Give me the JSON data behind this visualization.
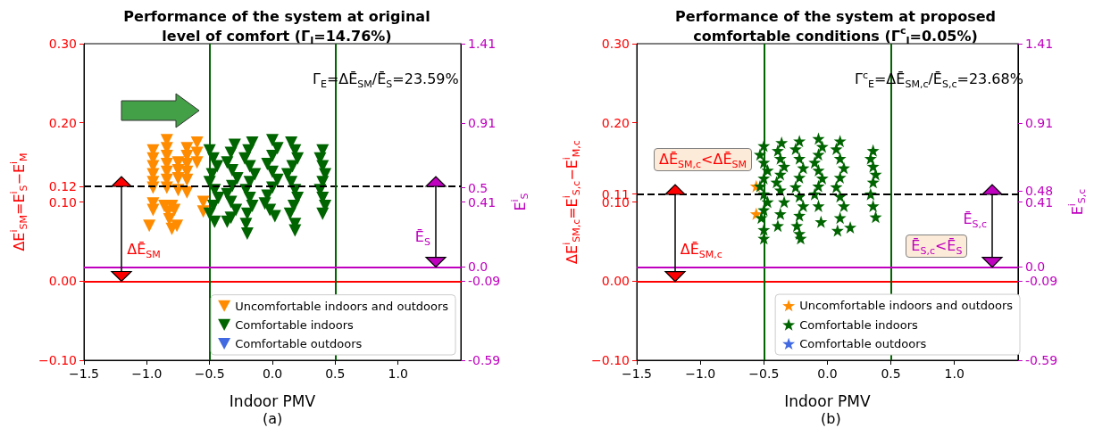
{
  "chart_data": [
    {
      "type": "scatter",
      "title": "Performance of the system at original\nlevel of comfort (Γ$_{I}$=14.76%)",
      "xlabel": "Indoor PMV",
      "ylabel": "ΔE$^{i}$$_{SM}$=E$^{i}$$_{S}$−E$^{i}$$_{M}$",
      "y2label": "E$^{i}$$_{S}$",
      "xlim": [
        -1.5,
        1.5
      ],
      "xticks": [
        {
          "value": -1.5,
          "label": "−1.5"
        },
        {
          "value": -1.0,
          "label": "−1.0"
        },
        {
          "value": -0.5,
          "label": "−0.5"
        },
        {
          "value": 0,
          "label": "0.0"
        },
        0.5,
        {
          "value": 1.0,
          "label": "1.0"
        }
      ],
      "ylim": [
        -0.1,
        0.3
      ],
      "yticks": [
        {
          "value": -0.1,
          "label": "−0.10"
        },
        {
          "value": 0,
          "label": "0.00"
        },
        {
          "value": 0.1,
          "label": "0.10"
        },
        0.12,
        {
          "value": 0.2,
          "label": "0.20"
        },
        {
          "value": 0.3,
          "label": "0.30"
        }
      ],
      "y2lim": [
        -0.59,
        1.41
      ],
      "y2ticks": [
        -0.59,
        -0.09,
        {
          "value": 0,
          "label": "0.0"
        },
        0.41,
        0.5,
        0.91,
        1.41
      ],
      "marker": "triangle",
      "legend": "bottom right",
      "series": [
        {
          "name": "Uncomfortable indoors and outdoors",
          "color": "#ff8c00",
          "x": [
            -0.95,
            -0.95,
            -0.95,
            -0.95,
            -0.95,
            -0.95,
            -0.95,
            -0.95,
            -0.98,
            -0.84,
            -0.84,
            -0.84,
            -0.84,
            -0.84,
            -0.84,
            -0.84,
            -0.86,
            -0.83,
            -0.8,
            -0.82,
            -0.78,
            -0.8,
            -0.76,
            -0.75,
            -0.75,
            -0.75,
            -0.75,
            -0.68,
            -0.68,
            -0.68,
            -0.68,
            -0.68,
            -0.68,
            -0.6,
            -0.6,
            -0.6,
            -0.55,
            -0.55
          ],
          "values": [
            0.165,
            0.155,
            0.145,
            0.135,
            0.125,
            0.118,
            0.098,
            0.09,
            0.07,
            0.178,
            0.168,
            0.158,
            0.148,
            0.138,
            0.128,
            0.118,
            0.095,
            0.088,
            0.095,
            0.078,
            0.09,
            0.066,
            0.07,
            0.15,
            0.14,
            0.13,
            0.115,
            0.168,
            0.158,
            0.148,
            0.138,
            0.128,
            0.112,
            0.175,
            0.162,
            0.15,
            0.1,
            0.088
          ]
        },
        {
          "name": "Comfortable indoors",
          "color": "#006400",
          "x": [
            -0.5,
            -0.47,
            -0.44,
            -0.48,
            -0.5,
            -0.46,
            -0.43,
            -0.47,
            -0.5,
            -0.46,
            -0.3,
            -0.33,
            -0.36,
            -0.32,
            -0.28,
            -0.32,
            -0.36,
            -0.33,
            -0.29,
            -0.33,
            -0.36,
            -0.16,
            -0.19,
            -0.22,
            -0.18,
            -0.14,
            -0.18,
            -0.21,
            -0.18,
            -0.16,
            -0.2,
            -0.21,
            -0.2,
            0.0,
            0.04,
            0.0,
            -0.04,
            0.0,
            0.04,
            0.0,
            -0.04,
            -0.06,
            -0.02,
            0.02,
            0.15,
            0.18,
            0.2,
            0.16,
            0.12,
            0.15,
            0.18,
            0.2,
            0.17,
            0.14,
            0.18,
            0.18,
            0.4,
            0.38,
            0.4,
            0.42,
            0.4,
            0.38,
            0.4,
            0.42,
            0.4
          ],
          "values": [
            0.165,
            0.155,
            0.145,
            0.135,
            0.125,
            0.115,
            0.105,
            0.095,
            0.085,
            0.075,
            0.172,
            0.162,
            0.15,
            0.14,
            0.13,
            0.12,
            0.11,
            0.1,
            0.09,
            0.08,
            0.075,
            0.175,
            0.165,
            0.155,
            0.145,
            0.135,
            0.125,
            0.115,
            0.105,
            0.095,
            0.085,
            0.072,
            0.06,
            0.178,
            0.168,
            0.158,
            0.148,
            0.138,
            0.128,
            0.118,
            0.108,
            0.098,
            0.09,
            0.082,
            0.175,
            0.165,
            0.155,
            0.145,
            0.135,
            0.125,
            0.115,
            0.105,
            0.095,
            0.085,
            0.072,
            0.064,
            0.165,
            0.155,
            0.145,
            0.135,
            0.125,
            0.115,
            0.105,
            0.095,
            0.085
          ]
        },
        {
          "name": "Comfortable outdoors",
          "color": "#4169e1"
        }
      ],
      "ref_lines": [
        {
          "axis": "y",
          "value": 0,
          "color": "#ff0000",
          "line_style": "solid"
        },
        {
          "axis": "y2",
          "value": 0,
          "color": "#bf00bf",
          "line_style": "solid"
        },
        {
          "axis": "y",
          "value": 0.12,
          "color": "#000000",
          "line_style": "dashed"
        },
        {
          "axis": "x",
          "value": -0.5,
          "color": "#006400",
          "line_style": "solid"
        },
        {
          "axis": "x",
          "value": 0.5,
          "color": "#006400",
          "line_style": "solid"
        }
      ],
      "annotations": [
        "Γ$_{E}$=ΔĒ$_{SM}$/Ē$_{S}$=23.59%",
        "ΔĒ$_{SM}$",
        "Ē$_{S}$",
        "(a)"
      ]
    },
    {
      "type": "scatter",
      "title": "Performance of the system at proposed\ncomfortable conditions (Γ$^{c}$$_{I}$=0.05%)",
      "xlabel": "Indoor PMV",
      "ylabel": "ΔE$^{i}$$_{SM,c}$=E$^{i}$$_{S,c}$−E$^{i}$$_{M,c}$",
      "y2label": "E$^{i}$$_{S,c}$",
      "xlim": [
        -1.5,
        1.5
      ],
      "xticks": [
        {
          "value": -1.5,
          "label": "−1.5"
        },
        {
          "value": -1.0,
          "label": "−1.0"
        },
        {
          "value": -0.5,
          "label": "−0.5"
        },
        {
          "value": 0,
          "label": "0.0"
        },
        0.5,
        {
          "value": 1.0,
          "label": "1.0"
        }
      ],
      "ylim": [
        -0.1,
        0.3
      ],
      "yticks": [
        {
          "value": -0.1,
          "label": "−0.10"
        },
        {
          "value": 0,
          "label": "0.00"
        },
        {
          "value": 0.1,
          "label": "0.10"
        },
        0.11,
        {
          "value": 0.2,
          "label": "0.20"
        },
        {
          "value": 0.3,
          "label": "0.30"
        }
      ],
      "y2lim": [
        -0.59,
        1.41
      ],
      "y2ticks": [
        -0.59,
        -0.09,
        {
          "value": 0,
          "label": "0.0"
        },
        0.41,
        0.48,
        0.91,
        1.41
      ],
      "marker": "star",
      "legend": "bottom right",
      "series": [
        {
          "name": "Uncomfortable indoors and outdoors",
          "color": "#ff8c00",
          "x": [
            -0.56,
            -0.56
          ],
          "values": [
            0.12,
            0.085
          ]
        },
        {
          "name": "Comfortable indoors",
          "color": "#006400",
          "x": [
            -0.5,
            -0.53,
            -0.5,
            -0.47,
            -0.5,
            -0.53,
            -0.5,
            -0.47,
            -0.5,
            -0.52,
            -0.5,
            -0.5,
            -0.36,
            -0.39,
            -0.37,
            -0.34,
            -0.37,
            -0.4,
            -0.37,
            -0.34,
            -0.37,
            -0.39,
            -0.22,
            -0.25,
            -0.22,
            -0.19,
            -0.22,
            -0.25,
            -0.22,
            -0.19,
            -0.22,
            -0.24,
            -0.22,
            -0.21,
            -0.07,
            -0.04,
            -0.07,
            -0.1,
            -0.07,
            -0.04,
            -0.07,
            -0.1,
            -0.07,
            -0.05,
            0.1,
            0.07,
            0.1,
            0.13,
            0.1,
            0.07,
            0.1,
            0.13,
            0.1,
            0.08,
            0.18,
            0.36,
            0.34,
            0.36,
            0.38,
            0.36,
            0.34,
            0.36,
            0.38
          ],
          "values": [
            0.171,
            0.16,
            0.15,
            0.14,
            0.13,
            0.12,
            0.11,
            0.1,
            0.09,
            0.08,
            0.065,
            0.054,
            0.175,
            0.165,
            0.155,
            0.145,
            0.135,
            0.125,
            0.115,
            0.1,
            0.085,
            0.07,
            0.177,
            0.167,
            0.155,
            0.143,
            0.131,
            0.119,
            0.107,
            0.095,
            0.083,
            0.07,
            0.06,
            0.054,
            0.18,
            0.17,
            0.16,
            0.15,
            0.14,
            0.13,
            0.12,
            0.11,
            0.095,
            0.075,
            0.177,
            0.167,
            0.155,
            0.143,
            0.131,
            0.119,
            0.107,
            0.095,
            0.08,
            0.064,
            0.068,
            0.165,
            0.155,
            0.145,
            0.135,
            0.125,
            0.11,
            0.095,
            0.081
          ]
        },
        {
          "name": "Comfortable outdoors",
          "color": "#4169e1"
        }
      ],
      "ref_lines": [
        {
          "axis": "y",
          "value": 0,
          "color": "#ff0000",
          "line_style": "solid"
        },
        {
          "axis": "y2",
          "value": 0,
          "color": "#bf00bf",
          "line_style": "solid"
        },
        {
          "axis": "y",
          "value": 0.11,
          "color": "#000000",
          "line_style": "dashed"
        },
        {
          "axis": "x",
          "value": -0.5,
          "color": "#006400",
          "line_style": "solid"
        },
        {
          "axis": "x",
          "value": 0.5,
          "color": "#006400",
          "line_style": "solid"
        }
      ],
      "annotations": [
        "Γ$^{c}$$_{E}$=ΔĒ$_{SM,c}$/Ē$_{S,c}$=23.68%",
        "ΔĒ$_{SM,c}$<ΔĒ$_{SM}$",
        "ΔĒ$_{SM,c}$",
        "Ē$_{S,c}$",
        "Ē$_{S,c}$<Ē$_{S}$",
        "(b)"
      ]
    }
  ]
}
